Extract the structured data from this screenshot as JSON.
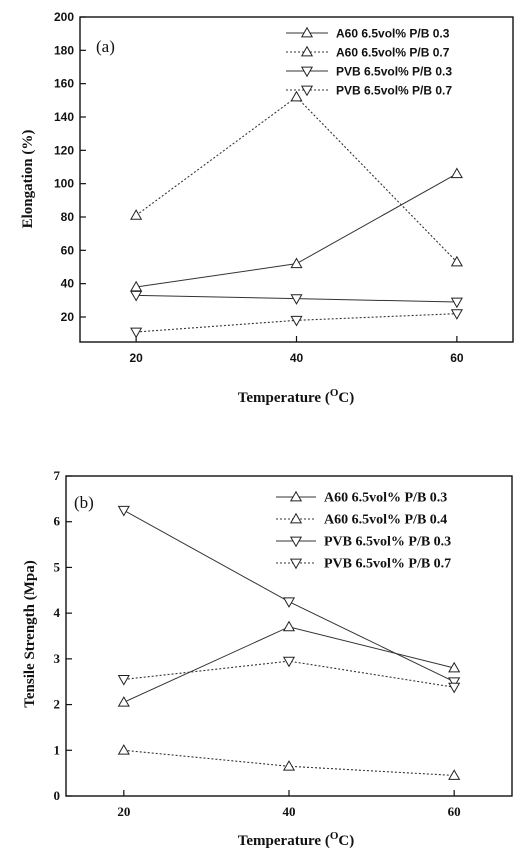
{
  "chart_data": [
    {
      "type": "line",
      "panel_label": "(a)",
      "xlabel": "Temperature (",
      "xlabel_sup": "O",
      "xlabel_end": "C)",
      "ylabel": "Elongation (%)",
      "x": [
        20,
        40,
        60
      ],
      "xlim": [
        13,
        67
      ],
      "ylim": [
        5,
        200
      ],
      "xticks": [
        "20",
        "40",
        "60"
      ],
      "yticks": [
        "20",
        "40",
        "60",
        "80",
        "100",
        "120",
        "140",
        "160",
        "180",
        "200"
      ],
      "legend_position": "top-right",
      "series": [
        {
          "name": "A60 6.5vol% P/B 0.3",
          "marker": "triangle-up",
          "dash": "solid",
          "values": [
            38,
            52,
            106
          ]
        },
        {
          "name": "A60 6.5vol% P/B 0.7",
          "marker": "triangle-up",
          "dash": "dotted",
          "values": [
            81,
            152,
            53
          ]
        },
        {
          "name": "PVB 6.5vol% P/B 0.3",
          "marker": "triangle-down",
          "dash": "solid",
          "values": [
            33,
            31,
            29
          ]
        },
        {
          "name": "PVB 6.5vol% P/B 0.7",
          "marker": "triangle-down",
          "dash": "dotted",
          "values": [
            11,
            18,
            22
          ]
        }
      ]
    },
    {
      "type": "line",
      "panel_label": "(b)",
      "xlabel": "Temperature (",
      "xlabel_sup": "O",
      "xlabel_end": "C)",
      "ylabel": "Tensile Strength (Mpa)",
      "x": [
        20,
        40,
        60
      ],
      "xlim": [
        13,
        67
      ],
      "ylim": [
        0,
        7
      ],
      "xticks": [
        "20",
        "40",
        "60"
      ],
      "yticks": [
        "0",
        "1",
        "2",
        "3",
        "4",
        "5",
        "6",
        "7"
      ],
      "legend_position": "top-right",
      "series": [
        {
          "name": "A60 6.5vol% P/B 0.3",
          "marker": "triangle-up",
          "dash": "solid",
          "values": [
            2.05,
            3.7,
            2.8
          ]
        },
        {
          "name": "A60 6.5vol% P/B 0.4",
          "marker": "triangle-up",
          "dash": "dotted",
          "values": [
            1.0,
            0.65,
            0.45
          ]
        },
        {
          "name": "PVB 6.5vol% P/B 0.3",
          "marker": "triangle-down",
          "dash": "solid",
          "values": [
            6.25,
            4.25,
            2.5
          ]
        },
        {
          "name": "PVB 6.5vol% P/B 0.7",
          "marker": "triangle-down",
          "dash": "dotted",
          "values": [
            2.55,
            2.95,
            2.38
          ]
        }
      ]
    }
  ]
}
